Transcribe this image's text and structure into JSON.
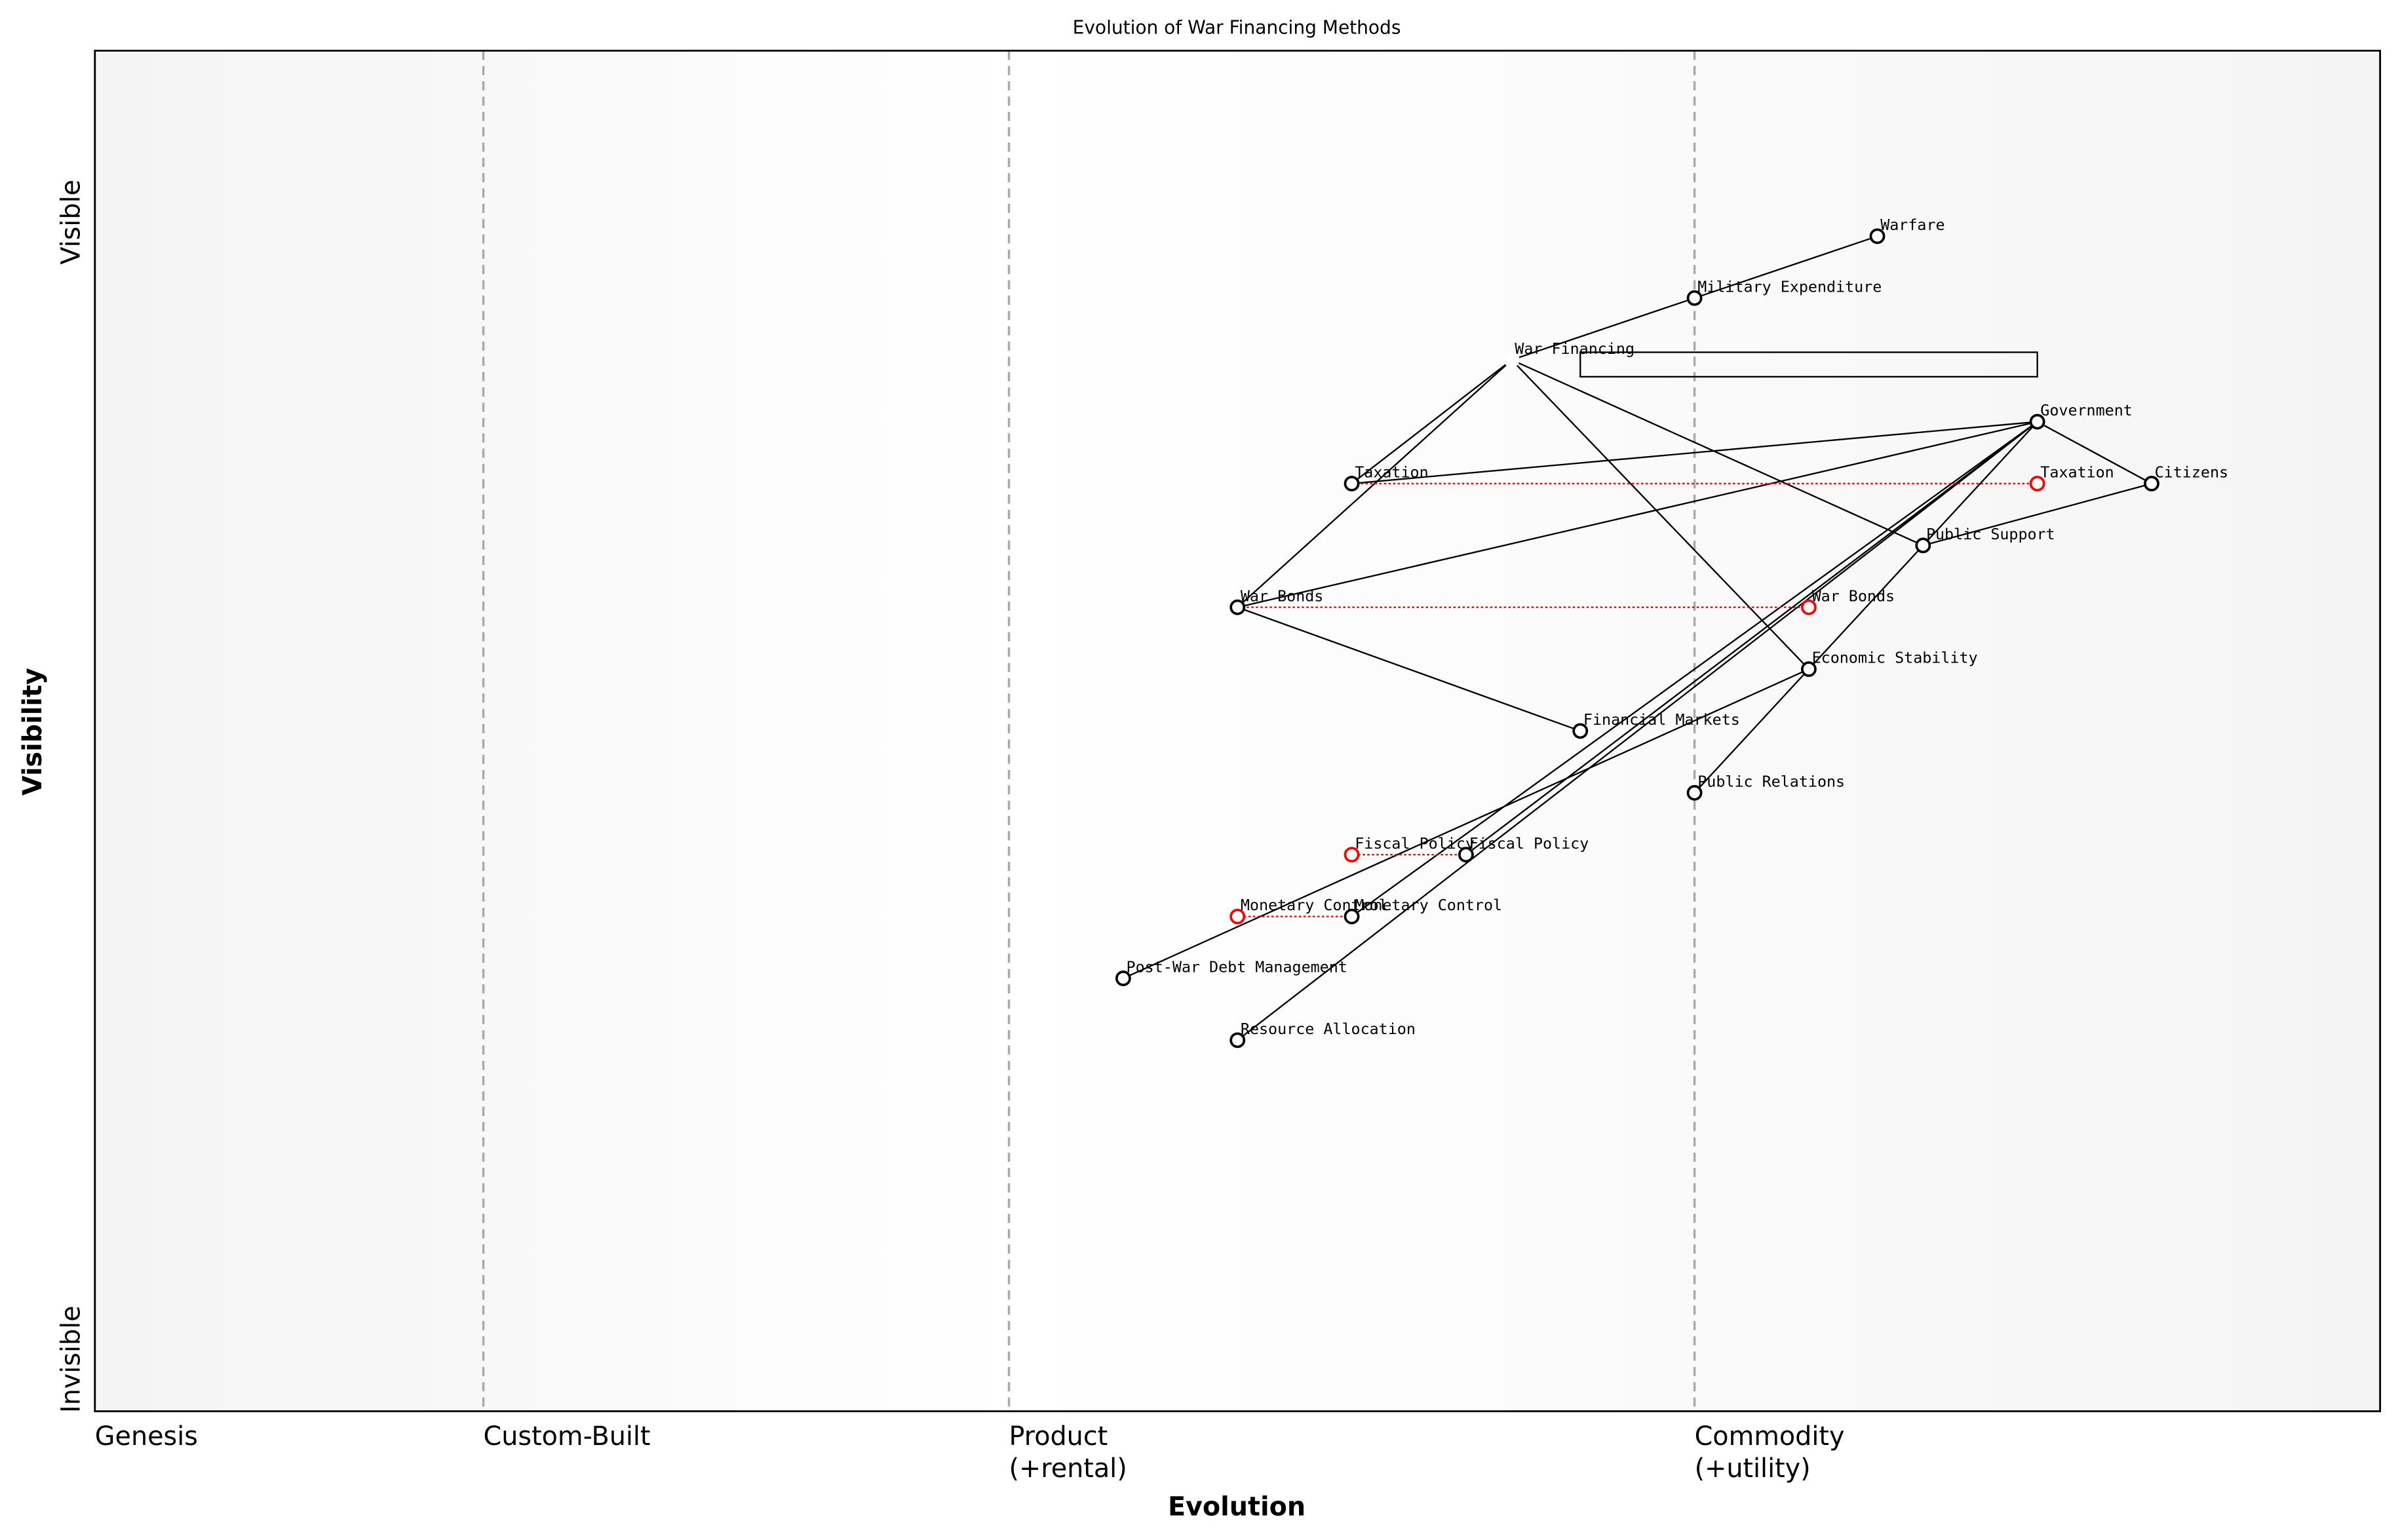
{
  "title": "Evolution of War Financing Methods",
  "axes": {
    "x_label": "Evolution",
    "y_label": "Visibility",
    "y_top": "Visible",
    "y_bottom": "Invisible",
    "visibility_range": [
      0,
      1.1
    ],
    "evolution_range": [
      0,
      1
    ]
  },
  "stages": [
    {
      "label": "Genesis",
      "sublabel": "",
      "start": 0
    },
    {
      "label": "Custom-Built",
      "sublabel": "",
      "start": 0.17
    },
    {
      "label": "Product",
      "sublabel": "(+rental)",
      "start": 0.4
    },
    {
      "label": "Commodity",
      "sublabel": "(+utility)",
      "start": 0.7
    }
  ],
  "colors": {
    "node": "#000000",
    "evolved": "#ff0000",
    "stage_line": "#aaaaaa",
    "band_shade": "#f5f5f5"
  },
  "nodes": [
    {
      "id": "warfare",
      "label": "Warfare",
      "evolution": 0.78,
      "visibility": 0.95
    },
    {
      "id": "milexp",
      "label": "Military Expenditure",
      "evolution": 0.7,
      "visibility": 0.9
    },
    {
      "id": "warfin",
      "label": "War Financing",
      "evolution": 0.62,
      "visibility": 0.85,
      "hidden_marker": true
    },
    {
      "id": "gov",
      "label": "Government",
      "evolution": 0.85,
      "visibility": 0.8
    },
    {
      "id": "tax",
      "label": "Taxation",
      "evolution": 0.55,
      "visibility": 0.75
    },
    {
      "id": "citizens",
      "label": "Citizens",
      "evolution": 0.9,
      "visibility": 0.75
    },
    {
      "id": "pubsup",
      "label": "Public Support",
      "evolution": 0.8,
      "visibility": 0.7
    },
    {
      "id": "bonds",
      "label": "War Bonds",
      "evolution": 0.5,
      "visibility": 0.65
    },
    {
      "id": "econ",
      "label": "Economic Stability",
      "evolution": 0.75,
      "visibility": 0.6
    },
    {
      "id": "finmkt",
      "label": "Financial Markets",
      "evolution": 0.65,
      "visibility": 0.55
    },
    {
      "id": "pr",
      "label": "Public Relations",
      "evolution": 0.7,
      "visibility": 0.5
    },
    {
      "id": "fiscal",
      "label": "Fiscal Policy",
      "evolution": 0.6,
      "visibility": 0.45
    },
    {
      "id": "monetary",
      "label": "Monetary Control",
      "evolution": 0.55,
      "visibility": 0.4
    },
    {
      "id": "postwar",
      "label": "Post-War Debt Management",
      "evolution": 0.45,
      "visibility": 0.35
    },
    {
      "id": "resource",
      "label": "Resource Allocation",
      "evolution": 0.5,
      "visibility": 0.3
    }
  ],
  "evolutions": [
    {
      "from": "tax",
      "label": "Taxation",
      "evolution": 0.85
    },
    {
      "from": "bonds",
      "label": "War Bonds",
      "evolution": 0.75
    },
    {
      "from": "fiscal",
      "label": "Fiscal Policy",
      "evolution": 0.55
    },
    {
      "from": "monetary",
      "label": "Monetary Control",
      "evolution": 0.5
    }
  ],
  "links": [
    [
      "warfin",
      "milexp"
    ],
    [
      "milexp",
      "warfare"
    ],
    [
      "warfin",
      "tax"
    ],
    [
      "warfin",
      "bonds"
    ],
    [
      "warfin",
      "pubsup"
    ],
    [
      "warfin",
      "econ"
    ],
    [
      "gov",
      "tax"
    ],
    [
      "gov",
      "bonds"
    ],
    [
      "gov",
      "citizens"
    ],
    [
      "gov",
      "fiscal"
    ],
    [
      "gov",
      "monetary"
    ],
    [
      "gov",
      "econ"
    ],
    [
      "gov",
      "resource"
    ],
    [
      "citizens",
      "pubsup"
    ],
    [
      "econ",
      "pr"
    ],
    [
      "econ",
      "postwar"
    ],
    [
      "bonds",
      "finmkt"
    ]
  ],
  "pipelines": [
    {
      "node": "warfin",
      "evolution_start": 0.65,
      "evolution_end": 0.85
    }
  ]
}
